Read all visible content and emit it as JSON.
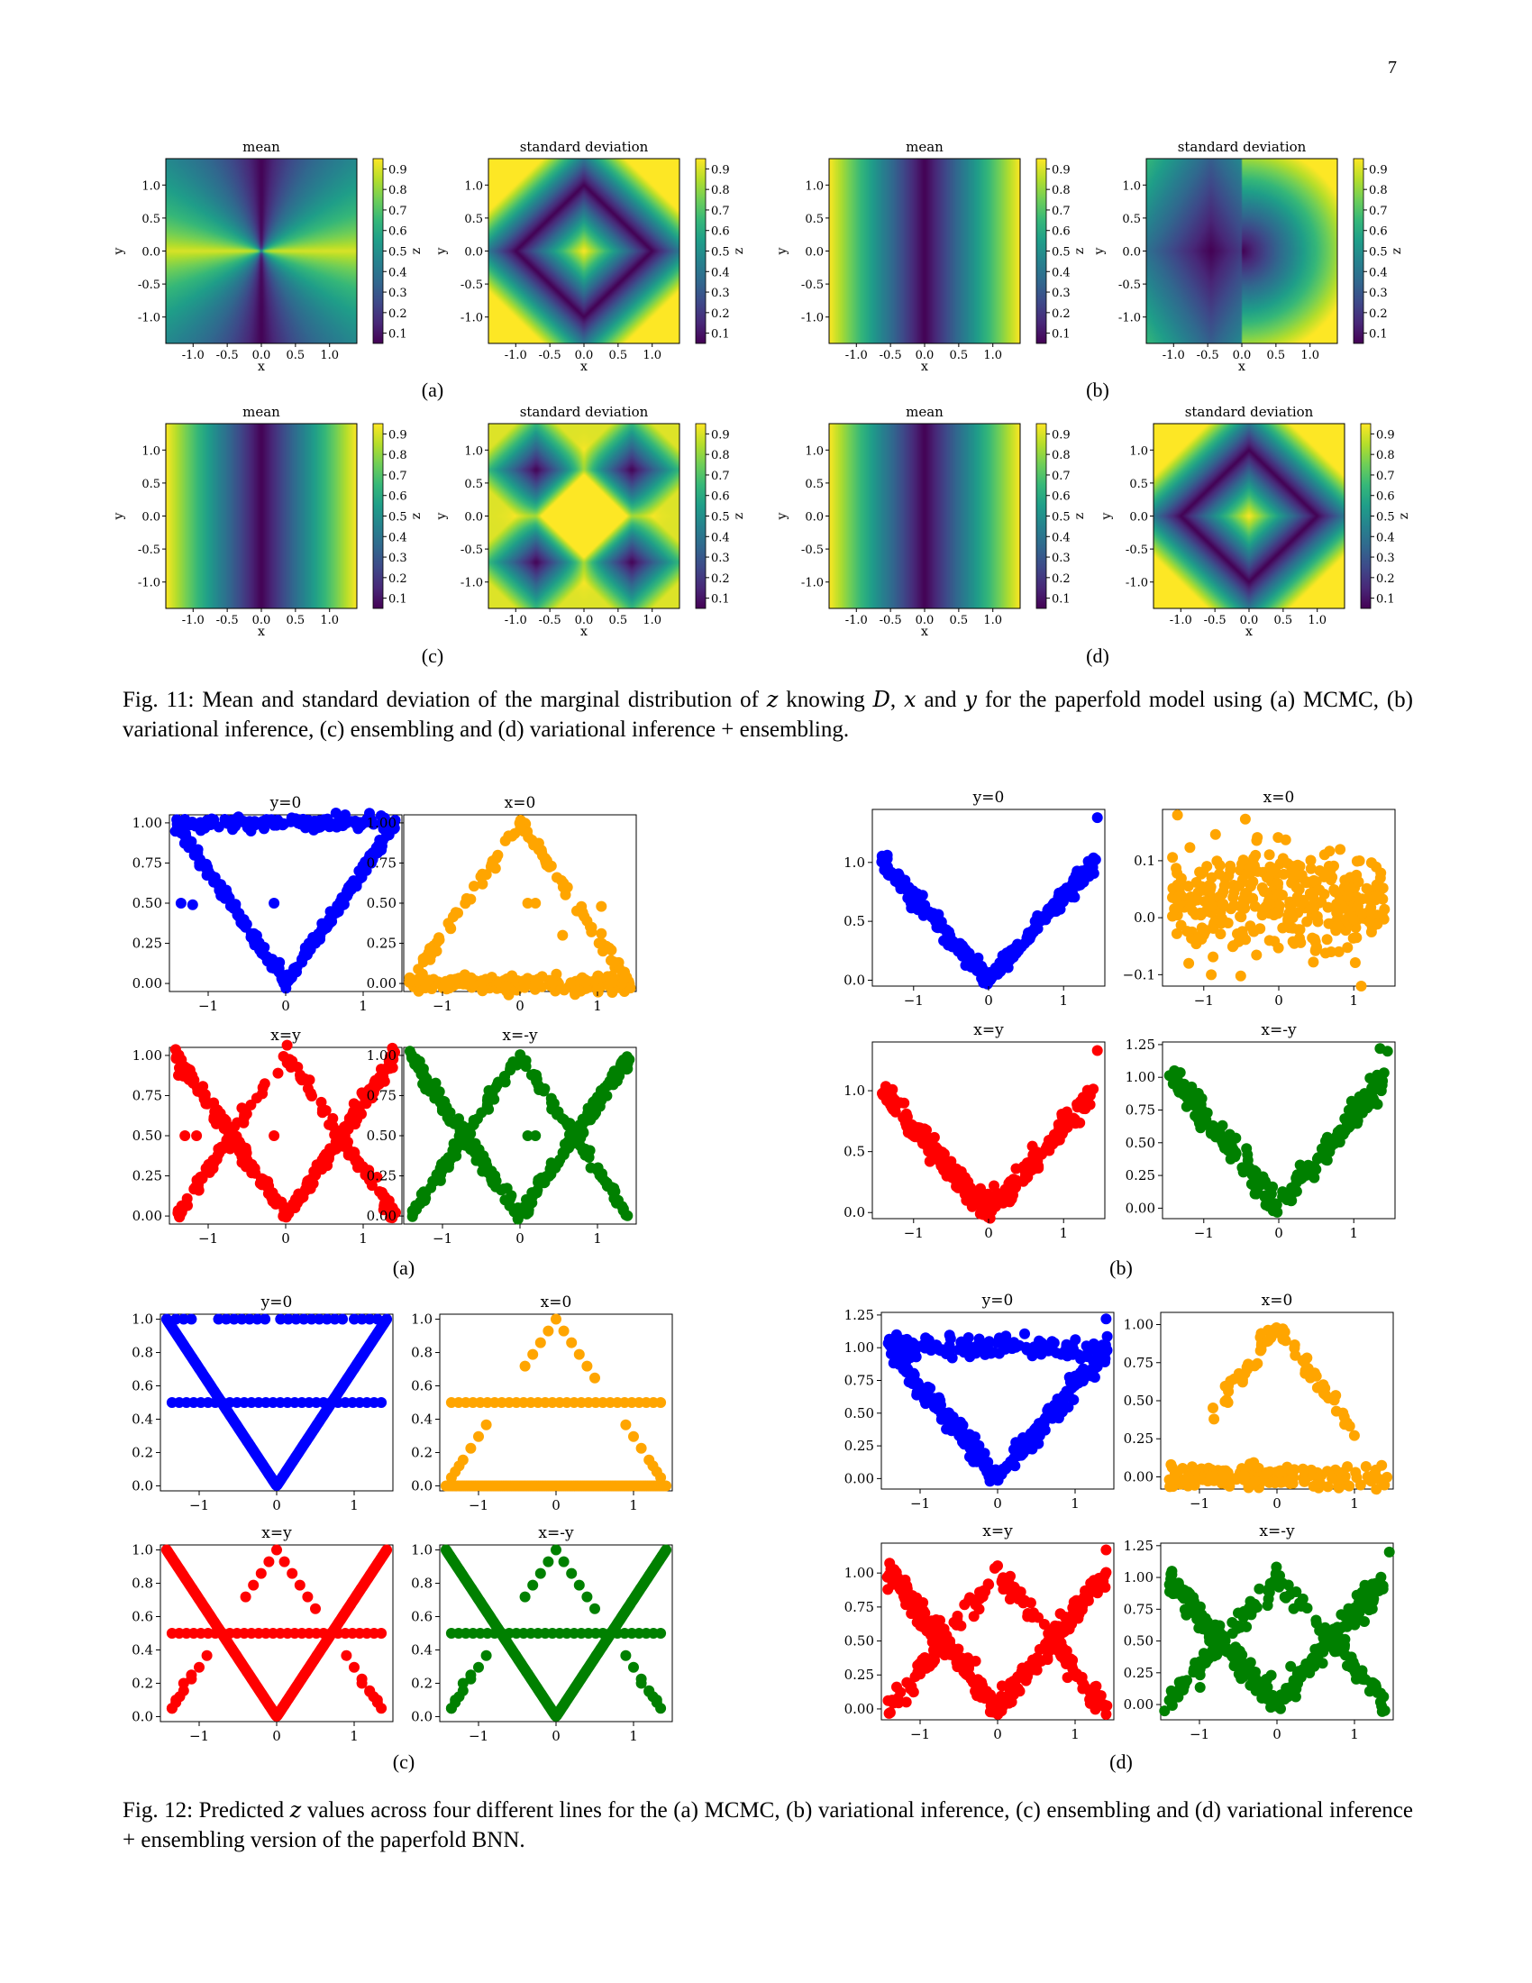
{
  "page_number": "7",
  "fig11": {
    "caption_parts": [
      "Fig. 11: Mean and standard deviation of the marginal distribution of ",
      "z",
      " knowing ",
      "D",
      ", ",
      "x",
      " and ",
      "y",
      " for the paperfold model using (a) MCMC, (b) variational inference, (c) ensembling and (d) variational inference + ensembling."
    ],
    "subfigure_labels": [
      "(a)",
      "(b)",
      "(c)",
      "(d)"
    ],
    "panel_titles": {
      "mean": "mean",
      "std": "standard deviation"
    },
    "axis": {
      "xlabel": "x",
      "ylabel": "y",
      "ticks": [
        "-1.0",
        "-0.5",
        "0.0",
        "0.5",
        "1.0"
      ]
    },
    "colorbar": {
      "label": "z",
      "ticks": [
        "0.9",
        "0.8",
        "0.7",
        "0.6",
        "0.5",
        "0.4",
        "0.3",
        "0.2",
        "0.1"
      ]
    },
    "colors": {
      "viridis": [
        "#440154",
        "#482878",
        "#3e4989",
        "#31688e",
        "#26828e",
        "#1f9e89",
        "#35b779",
        "#6ece58",
        "#b5de2b",
        "#fde725"
      ]
    }
  },
  "fig12": {
    "caption_parts": [
      "Fig. 12: Predicted ",
      "z",
      " values across four different lines for the (a) MCMC, (b) variational inference, (c) ensembling and (d) variational inference + ensembling version of the paperfold BNN."
    ],
    "subfigure_labels": [
      "(a)",
      "(b)",
      "(c)",
      "(d)"
    ],
    "line_titles": [
      "y=0",
      "x=0",
      "x=y",
      "x=-y"
    ],
    "series_colors": [
      "#0000ff",
      "#ffa500",
      "#ff0000",
      "#008000"
    ],
    "xticks": [
      "−1",
      "0",
      "1"
    ]
  },
  "chart_data": [
    {
      "type": "heatmap",
      "panel": "11a-mean",
      "title": "mean",
      "xlabel": "x",
      "ylabel": "y",
      "xlim": [
        -1.4,
        1.4
      ],
      "ylim": [
        -1.4,
        1.4
      ],
      "clim": [
        0.05,
        0.95
      ],
      "model": "abs_x_over_x_plus_y"
    },
    {
      "type": "heatmap",
      "panel": "11a-std",
      "title": "standard deviation",
      "xlabel": "x",
      "ylabel": "y",
      "xlim": [
        -1.4,
        1.4
      ],
      "ylim": [
        -1.4,
        1.4
      ],
      "clim": [
        0.05,
        0.95
      ],
      "model": "diamond_std"
    },
    {
      "type": "heatmap",
      "panel": "11b-mean",
      "title": "mean",
      "xlabel": "x",
      "ylabel": "y",
      "xlim": [
        -1.4,
        1.4
      ],
      "ylim": [
        -1.4,
        1.4
      ],
      "clim": [
        0.05,
        0.95
      ],
      "model": "abs_x"
    },
    {
      "type": "heatmap",
      "panel": "11b-std",
      "title": "standard deviation",
      "xlabel": "x",
      "ylabel": "y",
      "xlim": [
        -1.4,
        1.4
      ],
      "ylim": [
        -1.4,
        1.4
      ],
      "clim": [
        0.05,
        0.95
      ],
      "model": "half_plane_std"
    },
    {
      "type": "heatmap",
      "panel": "11c-mean",
      "title": "mean",
      "xlabel": "x",
      "ylabel": "y",
      "xlim": [
        -1.4,
        1.4
      ],
      "ylim": [
        -1.4,
        1.4
      ],
      "clim": [
        0.05,
        0.95
      ],
      "model": "abs_x"
    },
    {
      "type": "heatmap",
      "panel": "11c-std",
      "title": "standard deviation",
      "xlabel": "x",
      "ylabel": "y",
      "xlim": [
        -1.4,
        1.4
      ],
      "ylim": [
        -1.4,
        1.4
      ],
      "clim": [
        0.05,
        0.95
      ],
      "model": "four_lobe_std"
    },
    {
      "type": "heatmap",
      "panel": "11d-mean",
      "title": "mean",
      "xlabel": "x",
      "ylabel": "y",
      "xlim": [
        -1.4,
        1.4
      ],
      "ylim": [
        -1.4,
        1.4
      ],
      "clim": [
        0.05,
        0.95
      ],
      "model": "abs_x"
    },
    {
      "type": "heatmap",
      "panel": "11d-std",
      "title": "standard deviation",
      "xlabel": "x",
      "ylabel": "y",
      "xlim": [
        -1.4,
        1.4
      ],
      "ylim": [
        -1.4,
        1.4
      ],
      "clim": [
        0.05,
        0.95
      ],
      "model": "diamond_std"
    },
    {
      "type": "scatter",
      "panel": "12a-y0",
      "title": "y=0",
      "xlim": [
        -1.5,
        1.5
      ],
      "ylim": [
        -0.05,
        1.05
      ],
      "yticks": [
        0,
        0.25,
        0.5,
        0.75,
        1.0
      ],
      "ytick_labels": [
        "0.00",
        "0.25",
        "0.50",
        "0.75",
        "1.00"
      ],
      "color": "#0000ff",
      "branches": [
        "v",
        "top"
      ],
      "extra_points": [
        [
          -1.35,
          0.5
        ],
        [
          -1.2,
          0.49
        ],
        [
          -0.15,
          0.5
        ]
      ],
      "noise": 0.02
    },
    {
      "type": "scatter",
      "panel": "12a-x0",
      "title": "x=0",
      "xlim": [
        -1.5,
        1.5
      ],
      "ylim": [
        -0.05,
        1.05
      ],
      "yticks": [
        0,
        0.25,
        0.5,
        0.75,
        1.0
      ],
      "ytick_labels": [
        "0.00",
        "0.25",
        "0.50",
        "0.75",
        "1.00"
      ],
      "color": "#ffa500",
      "branches": [
        "inv",
        "bottom"
      ],
      "extra_points": [
        [
          0.1,
          0.5
        ],
        [
          0.2,
          0.5
        ],
        [
          1.05,
          0.48
        ],
        [
          0.55,
          0.3
        ]
      ],
      "noise": 0.025
    },
    {
      "type": "scatter",
      "panel": "12a-xy",
      "title": "x=y",
      "xlim": [
        -1.5,
        1.5
      ],
      "ylim": [
        -0.05,
        1.05
      ],
      "yticks": [
        0,
        0.25,
        0.5,
        0.75,
        1.0
      ],
      "ytick_labels": [
        "0.00",
        "0.25",
        "0.50",
        "0.75",
        "1.00"
      ],
      "color": "#ff0000",
      "branches": [
        "v",
        "inv",
        "outer"
      ],
      "extra_points": [
        [
          -1.3,
          0.5
        ],
        [
          -1.15,
          0.5
        ],
        [
          -0.15,
          0.5
        ]
      ],
      "noise": 0.025
    },
    {
      "type": "scatter",
      "panel": "12a-xmy",
      "title": "x=-y",
      "xlim": [
        -1.5,
        1.5
      ],
      "ylim": [
        -0.05,
        1.05
      ],
      "yticks": [
        0,
        0.25,
        0.5,
        0.75,
        1.0
      ],
      "ytick_labels": [
        "0.00",
        "0.25",
        "0.50",
        "0.75",
        "1.00"
      ],
      "color": "#008000",
      "branches": [
        "v",
        "inv",
        "outer"
      ],
      "extra_points": [
        [
          0.1,
          0.5
        ],
        [
          0.2,
          0.5
        ],
        [
          0.7,
          0.5
        ]
      ],
      "noise": 0.025
    },
    {
      "type": "scatter",
      "panel": "12b-y0",
      "title": "y=0",
      "xlim": [
        -1.55,
        1.55
      ],
      "ylim": [
        -0.05,
        1.45
      ],
      "yticks": [
        0,
        0.5,
        1.0
      ],
      "ytick_labels": [
        "0.0",
        "0.5",
        "1.0"
      ],
      "color": "#0000ff",
      "branches": [
        "v"
      ],
      "extra_points": [
        [
          1.45,
          1.38
        ]
      ],
      "noise": 0.04
    },
    {
      "type": "scatter",
      "panel": "12b-x0",
      "title": "x=0",
      "xlim": [
        -1.55,
        1.55
      ],
      "ylim": [
        -0.12,
        0.19
      ],
      "yticks": [
        -0.1,
        0,
        0.1
      ],
      "ytick_labels": [
        "−0.1",
        "0.0",
        "0.1"
      ],
      "color": "#ffa500",
      "branches": [
        "flat"
      ],
      "extra_points": [
        [
          -1.35,
          0.18
        ],
        [
          -1.2,
          -0.08
        ],
        [
          -0.9,
          -0.1
        ],
        [
          1.1,
          -0.12
        ]
      ],
      "noise": 0.045
    },
    {
      "type": "scatter",
      "panel": "12b-xy",
      "title": "x=y",
      "xlim": [
        -1.55,
        1.55
      ],
      "ylim": [
        -0.05,
        1.4
      ],
      "yticks": [
        0,
        0.5,
        1.0
      ],
      "ytick_labels": [
        "0.0",
        "0.5",
        "1.0"
      ],
      "color": "#ff0000",
      "branches": [
        "v"
      ],
      "extra_points": [
        [
          1.45,
          1.33
        ]
      ],
      "noise": 0.05
    },
    {
      "type": "scatter",
      "panel": "12b-xmy",
      "title": "x=-y",
      "xlim": [
        -1.55,
        1.55
      ],
      "ylim": [
        -0.08,
        1.27
      ],
      "yticks": [
        0,
        0.25,
        0.5,
        0.75,
        1.0,
        1.25
      ],
      "ytick_labels": [
        "0.00",
        "0.25",
        "0.50",
        "0.75",
        "1.00",
        "1.25"
      ],
      "color": "#008000",
      "branches": [
        "v"
      ],
      "extra_points": [
        [
          1.35,
          1.22
        ],
        [
          1.45,
          1.2
        ]
      ],
      "noise": 0.05
    },
    {
      "type": "scatter",
      "panel": "12c-y0",
      "title": "y=0",
      "xlim": [
        -1.5,
        1.5
      ],
      "ylim": [
        -0.03,
        1.03
      ],
      "yticks": [
        0,
        0.2,
        0.4,
        0.6,
        0.8,
        1.0
      ],
      "ytick_labels": [
        "0.0",
        "0.2",
        "0.4",
        "0.6",
        "0.8",
        "1.0"
      ],
      "color": "#0000ff",
      "branches": [
        "v_dense",
        "top_sparse",
        "half"
      ],
      "extra_points": [],
      "noise": 0.0
    },
    {
      "type": "scatter",
      "panel": "12c-x0",
      "title": "x=0",
      "xlim": [
        -1.5,
        1.5
      ],
      "ylim": [
        -0.03,
        1.03
      ],
      "yticks": [
        0,
        0.2,
        0.4,
        0.6,
        0.8,
        1.0
      ],
      "ytick_labels": [
        "0.0",
        "0.2",
        "0.4",
        "0.6",
        "0.8",
        "1.0"
      ],
      "color": "#ffa500",
      "branches": [
        "inv_sparse",
        "bottom_dense",
        "half"
      ],
      "extra_points": [],
      "noise": 0.0
    },
    {
      "type": "scatter",
      "panel": "12c-xy",
      "title": "x=y",
      "xlim": [
        -1.5,
        1.5
      ],
      "ylim": [
        -0.03,
        1.03
      ],
      "yticks": [
        0,
        0.2,
        0.4,
        0.6,
        0.8,
        1.0
      ],
      "ytick_labels": [
        "0.0",
        "0.2",
        "0.4",
        "0.6",
        "0.8",
        "1.0"
      ],
      "color": "#ff0000",
      "branches": [
        "v_dense",
        "inv_sparse",
        "half",
        "outer_sparse"
      ],
      "extra_points": [],
      "noise": 0.0
    },
    {
      "type": "scatter",
      "panel": "12c-xmy",
      "title": "x=-y",
      "xlim": [
        -1.5,
        1.5
      ],
      "ylim": [
        -0.03,
        1.03
      ],
      "yticks": [
        0,
        0.2,
        0.4,
        0.6,
        0.8,
        1.0
      ],
      "ytick_labels": [
        "0.0",
        "0.2",
        "0.4",
        "0.6",
        "0.8",
        "1.0"
      ],
      "color": "#008000",
      "branches": [
        "v_dense",
        "inv_sparse",
        "half",
        "outer_sparse"
      ],
      "extra_points": [],
      "noise": 0.0
    },
    {
      "type": "scatter",
      "panel": "12d-y0",
      "title": "y=0",
      "xlim": [
        -1.5,
        1.5
      ],
      "ylim": [
        -0.08,
        1.27
      ],
      "yticks": [
        0,
        0.25,
        0.5,
        0.75,
        1.0,
        1.25
      ],
      "ytick_labels": [
        "0.00",
        "0.25",
        "0.50",
        "0.75",
        "1.00",
        "1.25"
      ],
      "color": "#0000ff",
      "branches": [
        "v",
        "top"
      ],
      "extra_points": [
        [
          1.4,
          1.22
        ]
      ],
      "noise": 0.04
    },
    {
      "type": "scatter",
      "panel": "12d-x0",
      "title": "x=0",
      "xlim": [
        -1.5,
        1.5
      ],
      "ylim": [
        -0.08,
        1.08
      ],
      "yticks": [
        0,
        0.25,
        0.5,
        0.75,
        1.0
      ],
      "ytick_labels": [
        "0.00",
        "0.25",
        "0.50",
        "0.75",
        "1.00"
      ],
      "color": "#ffa500",
      "branches": [
        "inv_partial",
        "bottom"
      ],
      "extra_points": [],
      "noise": 0.035
    },
    {
      "type": "scatter",
      "panel": "12d-xy",
      "title": "x=y",
      "xlim": [
        -1.5,
        1.5
      ],
      "ylim": [
        -0.08,
        1.22
      ],
      "yticks": [
        0,
        0.25,
        0.5,
        0.75,
        1.0
      ],
      "ytick_labels": [
        "0.00",
        "0.25",
        "0.50",
        "0.75",
        "1.00"
      ],
      "color": "#ff0000",
      "branches": [
        "v",
        "inv",
        "outer"
      ],
      "extra_points": [
        [
          1.4,
          1.17
        ],
        [
          1.35,
          0.03
        ],
        [
          1.4,
          -0.04
        ]
      ],
      "noise": 0.05
    },
    {
      "type": "scatter",
      "panel": "12d-xmy",
      "title": "x=-y",
      "xlim": [
        -1.5,
        1.5
      ],
      "ylim": [
        -0.12,
        1.27
      ],
      "yticks": [
        0,
        0.25,
        0.5,
        0.75,
        1.0,
        1.25
      ],
      "ytick_labels": [
        "0.00",
        "0.25",
        "0.50",
        "0.75",
        "1.00",
        "1.25"
      ],
      "color": "#008000",
      "branches": [
        "v",
        "inv",
        "outer"
      ],
      "extra_points": [
        [
          1.45,
          1.2
        ],
        [
          -1.45,
          -0.05
        ]
      ],
      "noise": 0.05
    }
  ]
}
